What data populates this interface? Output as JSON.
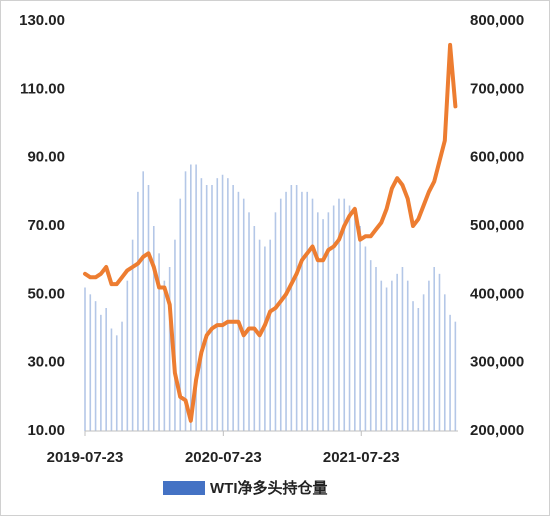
{
  "chart_data": {
    "type": "combo",
    "x": [
      "2019-07-23",
      "2019-08-06",
      "2019-08-20",
      "2019-09-03",
      "2019-09-17",
      "2019-10-01",
      "2019-10-15",
      "2019-10-29",
      "2019-11-12",
      "2019-11-26",
      "2019-12-10",
      "2019-12-24",
      "2020-01-07",
      "2020-01-21",
      "2020-02-04",
      "2020-02-18",
      "2020-03-03",
      "2020-03-17",
      "2020-03-31",
      "2020-04-14",
      "2020-04-28",
      "2020-05-12",
      "2020-05-26",
      "2020-06-09",
      "2020-06-23",
      "2020-07-07",
      "2020-07-21",
      "2020-08-04",
      "2020-08-18",
      "2020-09-01",
      "2020-09-15",
      "2020-09-29",
      "2020-10-13",
      "2020-10-27",
      "2020-11-10",
      "2020-11-24",
      "2020-12-08",
      "2020-12-22",
      "2021-01-05",
      "2021-01-19",
      "2021-02-02",
      "2021-02-16",
      "2021-03-02",
      "2021-03-16",
      "2021-03-30",
      "2021-04-13",
      "2021-04-27",
      "2021-05-11",
      "2021-05-25",
      "2021-06-08",
      "2021-06-22",
      "2021-07-06",
      "2021-07-20",
      "2021-08-03",
      "2021-08-17",
      "2021-08-31",
      "2021-09-14",
      "2021-09-28",
      "2021-10-12",
      "2021-10-26",
      "2021-11-09",
      "2021-11-23",
      "2021-12-07",
      "2021-12-21",
      "2022-01-04",
      "2022-01-18",
      "2022-02-01",
      "2022-02-15",
      "2022-03-01",
      "2022-03-15",
      "2022-03-29"
    ],
    "series": [
      {
        "name": "WTI净多头持仓量",
        "type": "bar",
        "axis": "y2",
        "color": "#4472c4",
        "values": [
          410000,
          400000,
          390000,
          370000,
          380000,
          350000,
          340000,
          360000,
          420000,
          480000,
          550000,
          580000,
          560000,
          500000,
          460000,
          420000,
          440000,
          480000,
          540000,
          580000,
          590000,
          590000,
          570000,
          560000,
          560000,
          570000,
          575000,
          570000,
          560000,
          550000,
          540000,
          520000,
          500000,
          480000,
          470000,
          480000,
          520000,
          540000,
          550000,
          560000,
          560000,
          550000,
          550000,
          540000,
          520000,
          510000,
          520000,
          530000,
          540000,
          540000,
          530000,
          520000,
          500000,
          470000,
          450000,
          440000,
          420000,
          410000,
          420000,
          430000,
          440000,
          420000,
          390000,
          380000,
          400000,
          420000,
          440000,
          430000,
          400000,
          370000,
          360000
        ]
      },
      {
        "type": "line",
        "color": "#ed7d31",
        "values": [
          56,
          55,
          55,
          56,
          58,
          53,
          53,
          55,
          57,
          58,
          59,
          61,
          62,
          58,
          52,
          52,
          47,
          27,
          20,
          19,
          13,
          25,
          33,
          38,
          40,
          41,
          41,
          42,
          42,
          42,
          38,
          40,
          40,
          38,
          41,
          45,
          46,
          48,
          50,
          53,
          56,
          60,
          62,
          64,
          60,
          60,
          63,
          64,
          66,
          70,
          73,
          75,
          66,
          67,
          67,
          69,
          71,
          75,
          81,
          84,
          82,
          78,
          70,
          72,
          76,
          80,
          83,
          89,
          95,
          123,
          105
        ]
      }
    ],
    "xlim": [
      "2019-07-23",
      "2022-04-05"
    ],
    "xticks": [
      "2019-07-23",
      "2020-07-23",
      "2021-07-23"
    ],
    "ylim": [
      10,
      130
    ],
    "yticks": [
      {
        "value": 10,
        "label": "10.00"
      },
      {
        "value": 30,
        "label": "30.00"
      },
      {
        "value": 50,
        "label": "50.00"
      },
      {
        "value": 70,
        "label": "70.00"
      },
      {
        "value": 90,
        "label": "90.00"
      },
      {
        "value": 110,
        "label": "110.00"
      },
      {
        "value": 130,
        "label": "130.00"
      }
    ],
    "y2lim": [
      200000,
      800000
    ],
    "y2ticks": [
      {
        "value": 200000,
        "label": "200,000"
      },
      {
        "value": 300000,
        "label": "300,000"
      },
      {
        "value": 400000,
        "label": "400,000"
      },
      {
        "value": 500000,
        "label": "500,000"
      },
      {
        "value": 600000,
        "label": "600,000"
      },
      {
        "value": 700000,
        "label": "700,000"
      },
      {
        "value": 800000,
        "label": "800,000"
      }
    ],
    "legend": "bottom"
  }
}
